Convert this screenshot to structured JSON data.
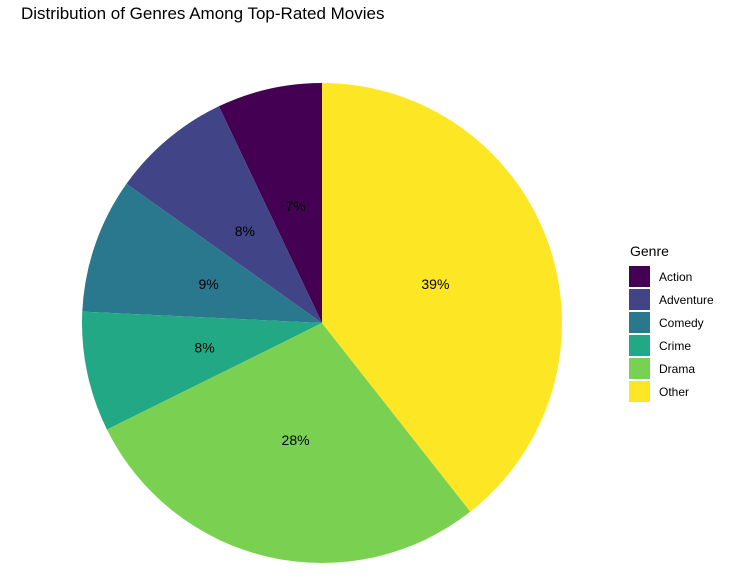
{
  "chart_data": {
    "type": "pie",
    "title": "Distribution of Genres Among Top-Rated Movies",
    "legend_title": "Genre",
    "legend_position": "right",
    "start": "top",
    "direction": "counterclockwise",
    "slices": [
      {
        "label": "Action",
        "value": 7,
        "display": "7%",
        "color": "#440154"
      },
      {
        "label": "Adventure",
        "value": 8,
        "display": "8%",
        "color": "#414487"
      },
      {
        "label": "Comedy",
        "value": 9,
        "display": "9%",
        "color": "#2A788E"
      },
      {
        "label": "Crime",
        "value": 8,
        "display": "8%",
        "color": "#22A884"
      },
      {
        "label": "Drama",
        "value": 28,
        "display": "28%",
        "color": "#7AD151"
      },
      {
        "label": "Other",
        "value": 39,
        "display": "39%",
        "color": "#FDE725"
      }
    ]
  }
}
